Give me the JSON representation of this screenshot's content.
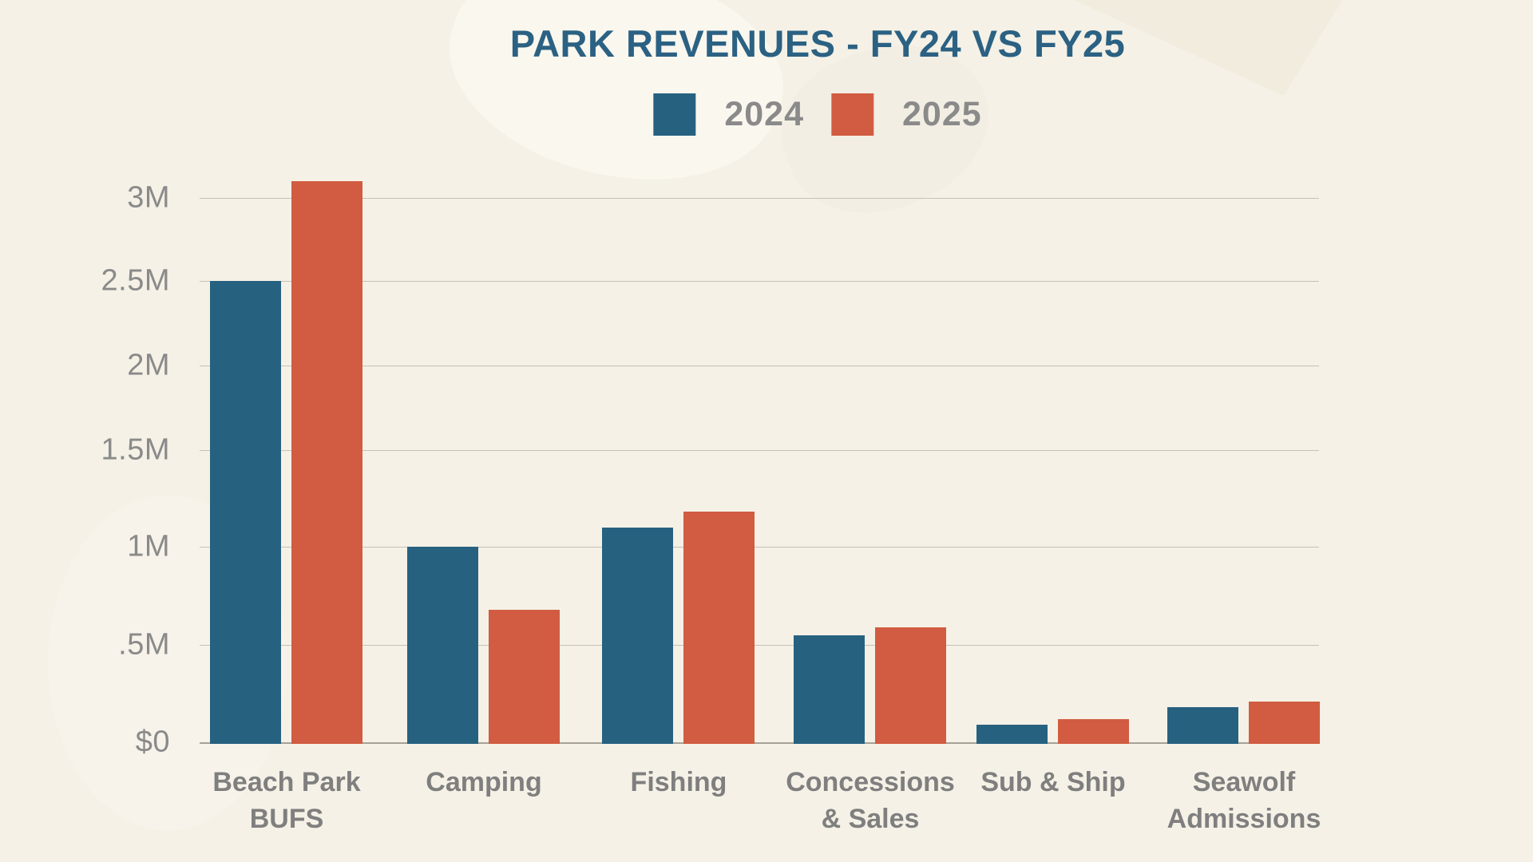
{
  "title": "PARK REVENUES - FY24 VS FY25",
  "colors": {
    "fy24": "#276180",
    "fy25": "#d15c42",
    "title_text": "#2b6183",
    "axis_text": "#8a8a8a",
    "category_text": "#7f7f7f",
    "background": "#f5f1e6",
    "gridline": "#c6c1b6",
    "baseline": "#a6a298"
  },
  "legend": [
    {
      "label": "2024",
      "color_key": "fy24"
    },
    {
      "label": "2025",
      "color_key": "fy25"
    }
  ],
  "chart_data": {
    "type": "bar",
    "title": "PARK REVENUES - FY24 VS FY25",
    "categories": [
      "Beach Park BUFS",
      "Camping",
      "Fishing",
      "Concessions & Sales",
      "Sub & Ship",
      "Seawolf Admissions"
    ],
    "category_label_lines": [
      [
        "Beach Park",
        "BUFS"
      ],
      [
        "Camping"
      ],
      [
        "Fishing"
      ],
      [
        "Concessions",
        "& Sales"
      ],
      [
        "Sub & Ship"
      ],
      [
        "Seawolf",
        "Admissions"
      ]
    ],
    "series": [
      {
        "name": "2024",
        "values_millions": [
          2.5,
          1.0,
          1.1,
          0.55,
          0.09,
          0.18
        ]
      },
      {
        "name": "2025",
        "values_millions": [
          3.1,
          0.68,
          1.18,
          0.59,
          0.12,
          0.21
        ]
      }
    ],
    "xlabel": "",
    "ylabel": "",
    "y_axis_ticks": [
      "$0",
      ".5M",
      "1M",
      "1.5M",
      "2M",
      "2.5M",
      "3M"
    ],
    "y_tick_values_millions": [
      0,
      0.5,
      1,
      1.5,
      2,
      2.5,
      3
    ],
    "ylim": [
      0,
      3.25
    ],
    "grid": "horizontal",
    "legend_position": "top-center"
  }
}
